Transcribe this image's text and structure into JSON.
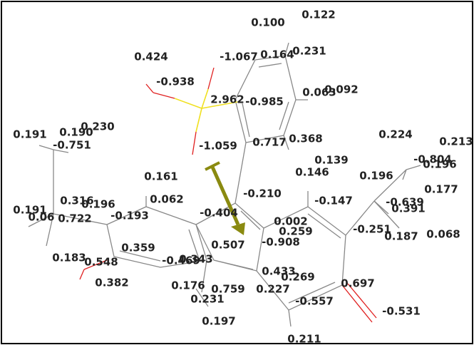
{
  "labels": [
    "0.100",
    "0.122",
    "0.424",
    "-1.067",
    "0.164",
    "0.231",
    "-0.938",
    "2.962",
    "-0.985",
    "0.063",
    "0.092",
    "0.191",
    "0.190",
    "0.230",
    "-0.751",
    "0.224",
    "0.213",
    "-1.059",
    "0.717",
    "0.368",
    "0.139",
    "0.146",
    "-0.804",
    "0.196",
    "0.196",
    "0.161",
    "-0.210",
    "0.177",
    "-0.147",
    "-0.639",
    "0.391",
    "0.191",
    "0.316",
    "0.196",
    "0.062",
    "-0.404",
    "0.06",
    "0.722",
    "-0.193",
    "0.002",
    "0.259",
    "-0.251",
    "0.187",
    "0.068",
    "0.507",
    "0.359",
    "-0.908",
    "0.183",
    "0.548",
    "-0.469",
    "0.343",
    "0.433",
    "0.269",
    "0.382",
    "0.697",
    "0.176",
    "0.759",
    "0.227",
    "0.231",
    "-0.557",
    "-0.531",
    "0.197",
    "0.211"
  ]
}
